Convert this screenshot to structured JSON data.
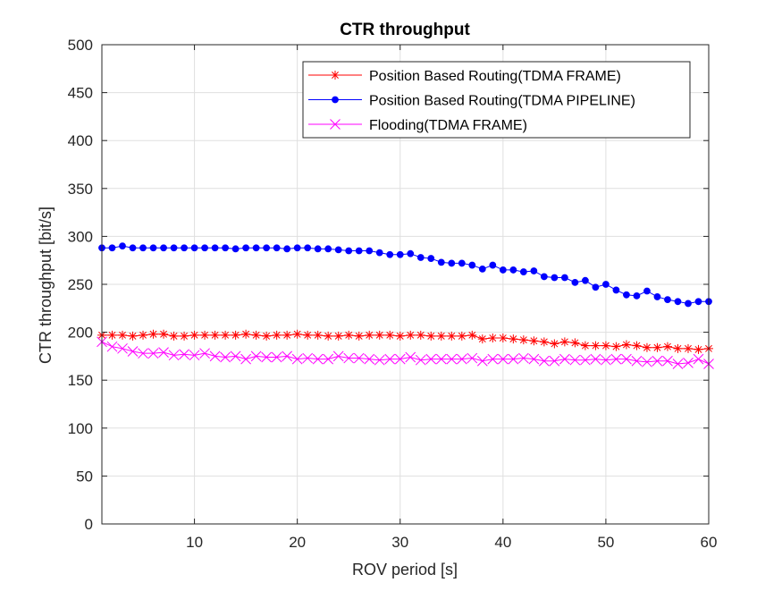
{
  "chart_data": {
    "type": "line",
    "title": "CTR throughput",
    "xlabel": "ROV period [s]",
    "ylabel": "CTR throughput [bit/s]",
    "xlim": [
      1,
      60
    ],
    "ylim": [
      0,
      500
    ],
    "xticks": [
      10,
      20,
      30,
      40,
      50,
      60
    ],
    "yticks": [
      0,
      50,
      100,
      150,
      200,
      250,
      300,
      350,
      400,
      450,
      500
    ],
    "grid": true,
    "legend_position": "top-right",
    "x": [
      1,
      2,
      3,
      4,
      5,
      6,
      7,
      8,
      9,
      10,
      11,
      12,
      13,
      14,
      15,
      16,
      17,
      18,
      19,
      20,
      21,
      22,
      23,
      24,
      25,
      26,
      27,
      28,
      29,
      30,
      31,
      32,
      33,
      34,
      35,
      36,
      37,
      38,
      39,
      40,
      41,
      42,
      43,
      44,
      45,
      46,
      47,
      48,
      49,
      50,
      51,
      52,
      53,
      54,
      55,
      56,
      57,
      58,
      59,
      60
    ],
    "series": [
      {
        "name": "Position Based Routing(TDMA FRAME)",
        "color": "#ff0000",
        "marker": "asterisk",
        "values": [
          197,
          197,
          197,
          196,
          197,
          198,
          198,
          196,
          196,
          197,
          197,
          197,
          197,
          197,
          198,
          197,
          196,
          197,
          197,
          198,
          197,
          197,
          196,
          196,
          197,
          196,
          197,
          197,
          197,
          196,
          197,
          197,
          196,
          196,
          196,
          196,
          197,
          193,
          194,
          194,
          193,
          192,
          191,
          190,
          188,
          190,
          189,
          186,
          186,
          186,
          185,
          187,
          186,
          184,
          184,
          185,
          183,
          183,
          182,
          183
        ],
        "line_width": 1
      },
      {
        "name": "Position Based Routing(TDMA PIPELINE)",
        "color": "#0000ff",
        "marker": "dot",
        "values": [
          288,
          288,
          290,
          288,
          288,
          288,
          288,
          288,
          288,
          288,
          288,
          288,
          288,
          287,
          288,
          288,
          288,
          288,
          287,
          288,
          288,
          287,
          287,
          286,
          285,
          285,
          285,
          283,
          281,
          281,
          282,
          278,
          277,
          273,
          272,
          272,
          270,
          266,
          270,
          265,
          265,
          263,
          264,
          258,
          257,
          257,
          252,
          254,
          247,
          250,
          244,
          239,
          238,
          243,
          237,
          234,
          232,
          230,
          232,
          232
        ],
        "line_width": 1
      },
      {
        "name": "Flooding(TDMA FRAME)",
        "color": "#ff00ff",
        "marker": "x",
        "values": [
          190,
          185,
          183,
          180,
          178,
          178,
          179,
          176,
          177,
          176,
          178,
          175,
          174,
          175,
          172,
          175,
          174,
          174,
          175,
          172,
          173,
          172,
          172,
          175,
          173,
          173,
          172,
          171,
          172,
          172,
          174,
          171,
          172,
          172,
          172,
          172,
          173,
          170,
          172,
          172,
          172,
          173,
          172,
          170,
          170,
          172,
          171,
          171,
          172,
          171,
          172,
          172,
          170,
          169,
          170,
          170,
          167,
          168,
          172,
          167
        ],
        "line_width": 1
      }
    ]
  }
}
